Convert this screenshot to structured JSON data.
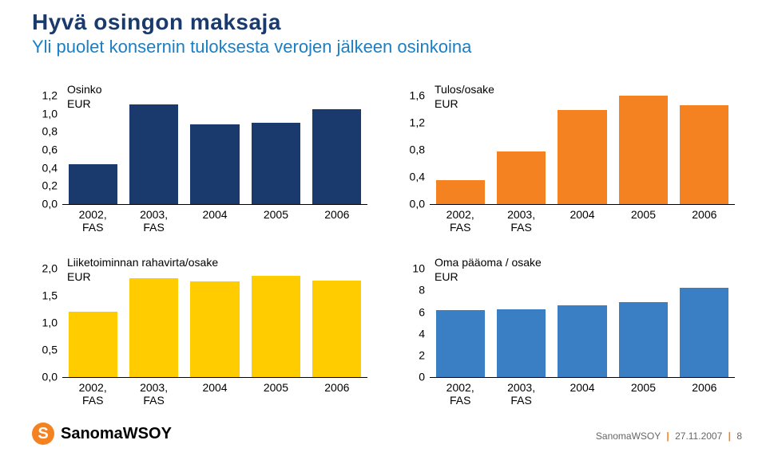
{
  "title": {
    "main": "Hyvä osingon maksaja",
    "sub": "Yli puolet konsernin tuloksesta verojen jälkeen osinkoina",
    "main_color": "#1a3a6e",
    "sub_color": "#1a7fc4",
    "main_fontsize": 28,
    "sub_fontsize": 22
  },
  "axis_fontsize": 14,
  "legend_fontsize": 14,
  "charts": [
    {
      "id": "osinko",
      "legend_title": "Osinko",
      "legend_unit": "EUR",
      "color": "#1a3a6e",
      "ymin": 0.0,
      "ymax": 1.2,
      "yticks": [
        "1,2",
        "1,0",
        "0,8",
        "0,6",
        "0,4",
        "0,2",
        "0,0"
      ],
      "bar_width": 0.8,
      "categories": [
        "2002,\nFAS",
        "2003,\nFAS",
        "2004",
        "2005",
        "2006"
      ],
      "values": [
        0.4,
        1.0,
        0.8,
        0.82,
        0.95
      ]
    },
    {
      "id": "tulos",
      "legend_title": "Tulos/osake",
      "legend_unit": "EUR",
      "color": "#f58220",
      "ymin": 0.0,
      "ymax": 1.6,
      "yticks": [
        "1,6",
        "1,2",
        "0,8",
        "0,4",
        "0,0"
      ],
      "bar_width": 0.8,
      "categories": [
        "2002,\nFAS",
        "2003,\nFAS",
        "2004",
        "2005",
        "2006"
      ],
      "values": [
        0.32,
        0.7,
        1.26,
        1.45,
        1.32
      ]
    },
    {
      "id": "rahavirta",
      "legend_title": "Liiketoiminnan rahavirta/osake",
      "legend_unit": "EUR",
      "color": "#ffcc00",
      "ymin": 0.0,
      "ymax": 2.0,
      "yticks": [
        "2,0",
        "1,5",
        "1,0",
        "0,5",
        "0,0"
      ],
      "bar_width": 0.8,
      "categories": [
        "2002,\nFAS",
        "2003,\nFAS",
        "2004",
        "2005",
        "2006"
      ],
      "values": [
        1.1,
        1.65,
        1.6,
        1.7,
        1.62
      ]
    },
    {
      "id": "omapaaoma",
      "legend_title": "Oma pääoma / osake",
      "legend_unit": "EUR",
      "color": "#3a7fc4",
      "ymin": 0,
      "ymax": 10,
      "yticks": [
        "10",
        "8",
        "6",
        "4",
        "2",
        "0"
      ],
      "bar_width": 0.8,
      "categories": [
        "2002,\nFAS",
        "2003,\nFAS",
        "2004",
        "2005",
        "2006"
      ],
      "values": [
        5.6,
        5.7,
        6.0,
        6.3,
        7.5
      ]
    }
  ],
  "footer": {
    "logo_text": "SanomaWSOY",
    "logo_glyph": "S",
    "logo_color": "#f58220",
    "meta_company": "SanomaWSOY",
    "meta_date": "27.11.2007",
    "meta_page": "8"
  }
}
